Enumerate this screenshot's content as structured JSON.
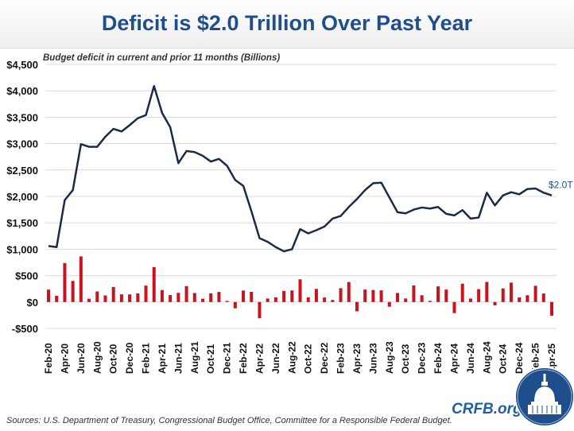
{
  "title": "Deficit is $2.0 Trillion Over Past Year",
  "source": "Sources: U.S. Department of Treasury, Congressional Budget Office, Committee for a Responsible Federal Budget.",
  "brand": "CRFB.org",
  "logo_icon": "capitol-dome-seal",
  "colors": {
    "title": "#1f4e8c",
    "line": "#1b2a48",
    "bars": "#c8141e",
    "annotation": "#1f4e8c"
  },
  "chart_data": {
    "type": "line+bar",
    "subtitle": "Budget deficit in current and prior 11 months (Billions)",
    "ylim": [
      -500,
      4500
    ],
    "yticks": [
      -500,
      0,
      500,
      1000,
      1500,
      2000,
      2500,
      3000,
      3500,
      4000,
      4500
    ],
    "ytick_labels": [
      "-$500",
      "$0",
      "$500",
      "$1,000",
      "$1,500",
      "$2,000",
      "$2,500",
      "$3,000",
      "$3,500",
      "$4,000",
      "$4,500"
    ],
    "grid": true,
    "months": [
      "Feb-20",
      "Mar-20",
      "Apr-20",
      "May-20",
      "Jun-20",
      "Jul-20",
      "Aug-20",
      "Sep-20",
      "Oct-20",
      "Nov-20",
      "Dec-20",
      "Jan-21",
      "Feb-21",
      "Mar-21",
      "Apr-21",
      "May-21",
      "Jun-21",
      "Jul-21",
      "Aug-21",
      "Sep-21",
      "Oct-21",
      "Nov-21",
      "Dec-21",
      "Jan-22",
      "Feb-22",
      "Mar-22",
      "Apr-22",
      "May-22",
      "Jun-22",
      "Jul-22",
      "Aug-22",
      "Sep-22",
      "Oct-22",
      "Nov-22",
      "Dec-22",
      "Jan-23",
      "Feb-23",
      "Mar-23",
      "Apr-23",
      "May-23",
      "Jun-23",
      "Jul-23",
      "Aug-23",
      "Sep-23",
      "Oct-23",
      "Nov-23",
      "Dec-23",
      "Jan-24",
      "Feb-24",
      "Mar-24",
      "Apr-24",
      "May-24",
      "Jun-24",
      "Jul-24",
      "Aug-24",
      "Sep-24",
      "Oct-24",
      "Nov-24",
      "Dec-24",
      "Jan-25",
      "Feb-25",
      "Mar-25",
      "Apr-25"
    ],
    "xtick_labels": [
      "Feb-20",
      "Apr-20",
      "Jun-20",
      "Aug-20",
      "Oct-20",
      "Dec-20",
      "Feb-21",
      "Apr-21",
      "Jun-21",
      "Aug-21",
      "Oct-21",
      "Dec-21",
      "Feb-22",
      "Apr-22",
      "Jun-22",
      "Aug-22",
      "Oct-22",
      "Dec-22",
      "Feb-23",
      "Apr-23",
      "Jun-23",
      "Aug-23",
      "Oct-23",
      "Dec-23",
      "Feb-24",
      "Apr-24",
      "Jun-24",
      "Aug-24",
      "Oct-24",
      "Dec-24",
      "Feb-25",
      "Apr-25"
    ],
    "series": [
      {
        "type": "line",
        "values": [
          1060,
          1040,
          1930,
          2120,
          2990,
          2940,
          2940,
          3130,
          3280,
          3230,
          3350,
          3480,
          3540,
          4090,
          3580,
          3310,
          2630,
          2860,
          2840,
          2770,
          2660,
          2710,
          2580,
          2310,
          2200,
          1720,
          1210,
          1140,
          1040,
          960,
          1000,
          1380,
          1300,
          1360,
          1430,
          1580,
          1630,
          1800,
          1950,
          2120,
          2250,
          2260,
          1980,
          1700,
          1680,
          1750,
          1790,
          1770,
          1800,
          1670,
          1640,
          1740,
          1580,
          1600,
          2070,
          1830,
          2020,
          2080,
          2040,
          2140,
          2150,
          2070,
          2020
        ]
      },
      {
        "type": "bar",
        "values": [
          235,
          119,
          738,
          399,
          864,
          63,
          200,
          125,
          284,
          145,
          144,
          163,
          311,
          660,
          226,
          132,
          174,
          302,
          171,
          62,
          165,
          191,
          21,
          -119,
          217,
          193,
          -308,
          66,
          89,
          211,
          220,
          430,
          88,
          249,
          85,
          39,
          262,
          378,
          -176,
          236,
          228,
          221,
          -89,
          171,
          67,
          314,
          129,
          22,
          296,
          236,
          -210,
          347,
          66,
          244,
          380,
          -64,
          257,
          367,
          87,
          129,
          307,
          161,
          -258
        ]
      }
    ],
    "annotations": [
      {
        "month": "Apr-25",
        "text": "$2.0T"
      }
    ]
  }
}
